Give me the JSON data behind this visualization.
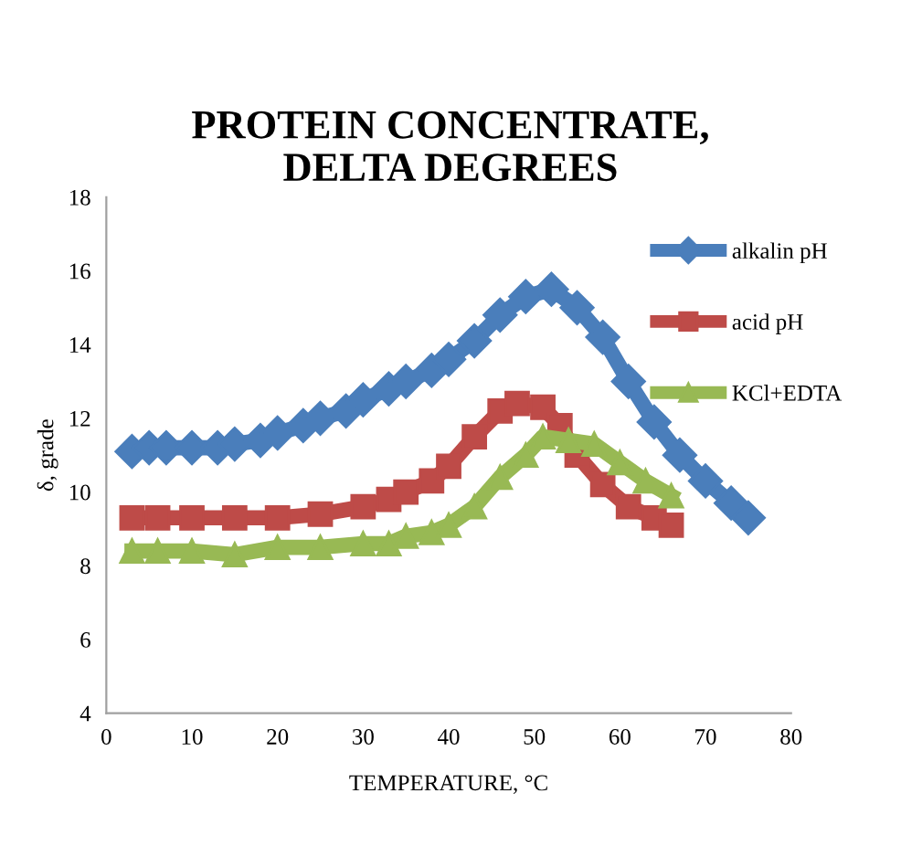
{
  "chart_data": {
    "type": "line",
    "title": "PROTEIN CONCENTRATE,\nDELTA DEGREES",
    "xlabel": "TEMPERATURE, °C",
    "ylabel": "δ, grade",
    "xlim": [
      0,
      80
    ],
    "xticks": [
      0,
      10,
      20,
      30,
      40,
      50,
      60,
      70,
      80
    ],
    "ylim": [
      4,
      18
    ],
    "yticks": [
      4,
      6,
      8,
      10,
      12,
      14,
      16,
      18
    ],
    "grid": false,
    "legend": "right",
    "series": [
      {
        "name": "alkalin pH",
        "color": "#4a7ebb",
        "marker": "diamond",
        "x": [
          3,
          5,
          7,
          10,
          13,
          15,
          18,
          20,
          23,
          25,
          28,
          30,
          33,
          35,
          38,
          40,
          43,
          46,
          49,
          52,
          55,
          58,
          61,
          64,
          67,
          70,
          73,
          75
        ],
        "values": [
          11.1,
          11.2,
          11.2,
          11.2,
          11.2,
          11.3,
          11.4,
          11.6,
          11.8,
          12.0,
          12.2,
          12.5,
          12.8,
          13.0,
          13.3,
          13.6,
          14.1,
          14.8,
          15.3,
          15.5,
          15.0,
          14.2,
          13.0,
          11.9,
          11.0,
          10.3,
          9.7,
          9.3
        ]
      },
      {
        "name": "acid pH",
        "color": "#be4b48",
        "marker": "square",
        "x": [
          3,
          6,
          10,
          15,
          20,
          25,
          30,
          33,
          35,
          38,
          40,
          43,
          46,
          48,
          51,
          53,
          55,
          58,
          61,
          64,
          66
        ],
        "values": [
          9.3,
          9.3,
          9.3,
          9.3,
          9.3,
          9.4,
          9.6,
          9.8,
          10.0,
          10.3,
          10.7,
          11.5,
          12.2,
          12.4,
          12.3,
          11.8,
          11.0,
          10.2,
          9.6,
          9.3,
          9.1
        ]
      },
      {
        "name": "KCl+EDTA",
        "color": "#98b954",
        "marker": "triangle",
        "x": [
          3,
          6,
          10,
          15,
          20,
          25,
          30,
          33,
          35,
          38,
          40,
          43,
          46,
          49,
          51,
          54,
          57,
          60,
          63,
          66
        ],
        "values": [
          8.4,
          8.4,
          8.4,
          8.3,
          8.5,
          8.5,
          8.6,
          8.6,
          8.8,
          8.9,
          9.1,
          9.6,
          10.4,
          11.0,
          11.5,
          11.4,
          11.3,
          10.8,
          10.3,
          9.9
        ]
      }
    ]
  }
}
